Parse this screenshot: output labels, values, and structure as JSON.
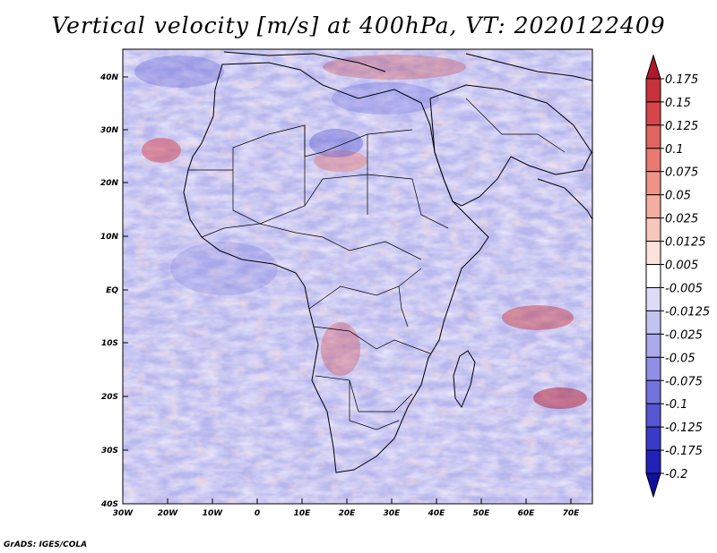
{
  "title": "Vertical velocity [m/s] at 400hPa, VT: 2020122409",
  "credit": "GrADS: IGES/COLA",
  "map": {
    "lat_labels": [
      "40N",
      "30N",
      "20N",
      "10N",
      "EQ",
      "10S",
      "20S",
      "30S",
      "40S"
    ],
    "lon_labels": [
      "30W",
      "20W",
      "10W",
      "0",
      "10E",
      "20E",
      "30E",
      "40E",
      "50E",
      "60E",
      "70E"
    ]
  },
  "colorbar": {
    "levels": [
      "0.175",
      "0.15",
      "0.125",
      "0.1",
      "0.075",
      "0.05",
      "0.025",
      "0.0125",
      "0.005",
      "-0.005",
      "-0.0125",
      "-0.025",
      "-0.05",
      "-0.075",
      "-0.1",
      "-0.125",
      "-0.175",
      "-0.2"
    ],
    "colors": [
      "#b2182b",
      "#c8323a",
      "#d6454a",
      "#e0645f",
      "#e87a72",
      "#ef9387",
      "#f4aea1",
      "#f8c7bb",
      "#fce2da",
      "#ffffff",
      "#dcdcf7",
      "#c3c3f2",
      "#a9a9ec",
      "#8f8fe6",
      "#7373de",
      "#5656d4",
      "#3a3ac8",
      "#2222b8",
      "#1010a0"
    ]
  },
  "chart_data": {
    "type": "heatmap",
    "title": "Vertical velocity [m/s] at 400hPa, VT: 2020122409",
    "variable": "Vertical velocity",
    "units": "m/s",
    "level": "400hPa",
    "valid_time": "2020122409",
    "lon_range": [
      -30,
      75
    ],
    "lat_range": [
      -40,
      45
    ],
    "colorbar_levels": [
      0.175,
      0.15,
      0.125,
      0.1,
      0.075,
      0.05,
      0.025,
      0.0125,
      0.005,
      -0.005,
      -0.0125,
      -0.025,
      -0.05,
      -0.075,
      -0.1,
      -0.125,
      -0.175,
      -0.2
    ]
  }
}
